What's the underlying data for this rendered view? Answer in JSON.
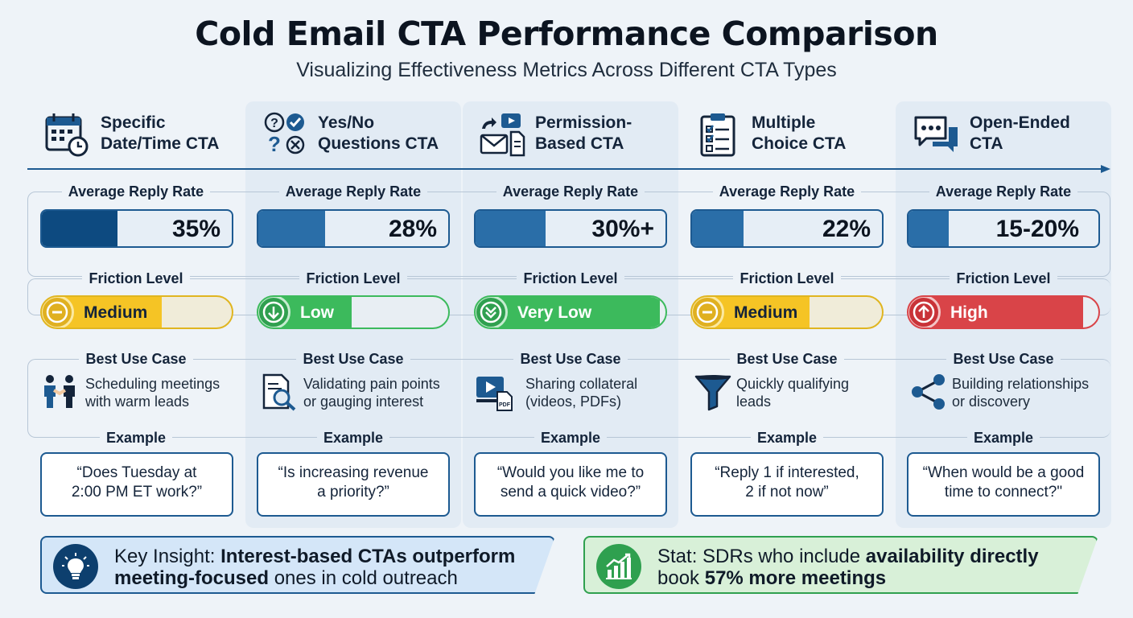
{
  "title": "Cold Email CTA Performance Comparison",
  "subtitle": "Visualizing Effectiveness Metrics Across Different CTA Types",
  "labels": {
    "reply": "Average Reply Rate",
    "friction": "Friction Level",
    "usecase": "Best Use Case",
    "example": "Example"
  },
  "columns": [
    {
      "name_line1": "Specific",
      "name_line2": "Date/Time CTA",
      "icon": "calendar-clock-icon",
      "reply_rate": "35%",
      "reply_fill": 0.4,
      "reply_color": "#0d4a80",
      "friction": "Medium",
      "friction_fill": 0.63,
      "friction_color": "#f5c425",
      "friction_icon": "minus-circle-icon",
      "use_icon": "handshake-people-icon",
      "use_line1": "Scheduling meetings",
      "use_line2": "with warm leads",
      "example_line1": "“Does Tuesday at",
      "example_line2": "2:00 PM ET work?”"
    },
    {
      "name_line1": "Yes/No",
      "name_line2": "Questions CTA",
      "icon": "question-check-icon",
      "reply_rate": "28%",
      "reply_fill": 0.35,
      "reply_color": "#2a6ea8",
      "friction": "Low",
      "friction_fill": 0.49,
      "friction_color": "#3cba5c",
      "friction_icon": "arrow-down-circle-icon",
      "use_icon": "document-search-icon",
      "use_line1": "Validating pain points",
      "use_line2": "or gauging interest",
      "example_line1": "“Is increasing revenue",
      "example_line2": "a priority?”"
    },
    {
      "name_line1": "Permission-",
      "name_line2": "Based CTA",
      "icon": "share-video-mail-icon",
      "reply_rate": "30%+",
      "reply_fill": 0.37,
      "reply_color": "#2a6ea8",
      "friction": "Very Low",
      "friction_fill": 0.97,
      "friction_color": "#3cba5c",
      "friction_icon": "double-chevron-down-icon",
      "use_icon": "video-pdf-icon",
      "use_line1": "Sharing collateral",
      "use_line2": "(videos, PDFs)",
      "example_line1": "“Would you like me to",
      "example_line2": "send a quick video?”"
    },
    {
      "name_line1": "Multiple",
      "name_line2": "Choice CTA",
      "icon": "checklist-clipboard-icon",
      "reply_rate": "22%",
      "reply_fill": 0.27,
      "reply_color": "#2a6ea8",
      "friction": "Medium",
      "friction_fill": 0.62,
      "friction_color": "#f5c425",
      "friction_icon": "minus-circle-icon",
      "use_icon": "funnel-icon",
      "use_line1": "Quickly qualifying",
      "use_line2": "leads",
      "example_line1": "“Reply 1 if interested,",
      "example_line2": "2 if not now”"
    },
    {
      "name_line1": "Open-Ended",
      "name_line2": "CTA",
      "icon": "chat-bubbles-icon",
      "reply_rate": "15-20%",
      "reply_fill": 0.21,
      "reply_color": "#2a6ea8",
      "friction": "High",
      "friction_fill": 0.92,
      "friction_color": "#d94448",
      "friction_icon": "arrow-up-circle-icon",
      "use_icon": "share-network-icon",
      "use_line1": "Building relationships",
      "use_line2": "or discovery",
      "example_line1": "“When would be a good",
      "example_line2": "time to connect?\""
    }
  ],
  "insight": {
    "icon": "lightbulb-icon",
    "prefix": "Key Insight: ",
    "bold1": "Interest-based CTAs outperform",
    "bold2": "meeting-focused",
    "suffix": " ones in cold outreach"
  },
  "stat": {
    "icon": "bar-chart-growth-icon",
    "prefix": "Stat: SDRs who include ",
    "bold1": "availability directly",
    "line2_prefix": "book ",
    "bold2": "57% more meetings"
  }
}
